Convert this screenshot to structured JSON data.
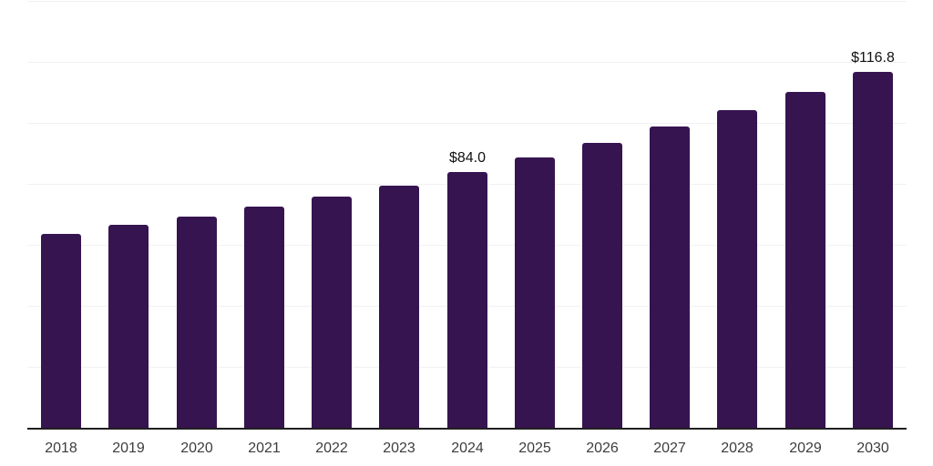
{
  "chart_data": {
    "type": "bar",
    "categories": [
      "2018",
      "2019",
      "2020",
      "2021",
      "2022",
      "2023",
      "2024",
      "2025",
      "2026",
      "2027",
      "2028",
      "2029",
      "2030"
    ],
    "values": [
      63.7,
      66.5,
      69.4,
      72.7,
      75.9,
      79.4,
      84.0,
      88.6,
      93.4,
      98.8,
      104.3,
      110.1,
      116.8
    ],
    "data_labels": [
      {
        "category": "2024",
        "text": "$84.0"
      },
      {
        "category": "2030",
        "text": "$116.8"
      }
    ],
    "title": "",
    "xlabel": "",
    "ylabel": "",
    "ylim": [
      0,
      140.4
    ],
    "gridline_values": [
      20,
      40,
      60,
      80,
      100,
      120,
      140
    ],
    "grid": "horizontal",
    "legend": "none",
    "y_axis_tick_labels": "none",
    "colors": {
      "bar": "#361450",
      "gridline": "#f2f0f3",
      "axis_line": "#1f1f1f",
      "tick_label": "#3d3d3d",
      "data_label": "#111111",
      "background": "#ffffff"
    }
  }
}
